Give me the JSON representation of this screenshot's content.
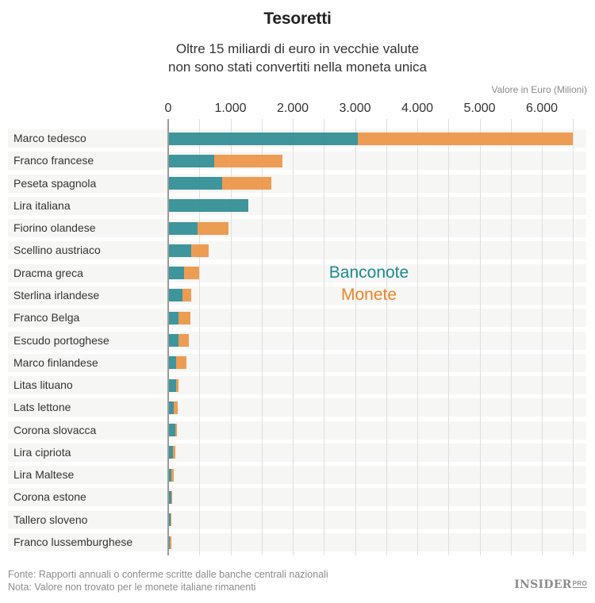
{
  "header": {
    "title": "Tesoretti",
    "subtitle_line1": "Oltre 15 miliardi di euro in vecchie valute",
    "subtitle_line2": "non sono stati convertiti nella moneta unica"
  },
  "axis": {
    "title": "Valore in Euro (Milioni)",
    "ticks": [
      "0",
      "1.000",
      "2.000",
      "3.000",
      "4.000",
      "5.000",
      "6.000"
    ]
  },
  "legend": {
    "banconote": "Banconote",
    "monete": "Monete"
  },
  "colors": {
    "banconote": "#2e8c92",
    "monete": "#ec9444",
    "legend_banconote_text": "#1f8a8f",
    "legend_monete_text": "#e8852a"
  },
  "footer": {
    "source": "Fonte: Rapporti annuali o conferme scritte dalle banche centrali nazionali",
    "note": "Nota: Valore non trovato per le monete italiane rimanenti"
  },
  "logo": {
    "name": "INSIDER",
    "suffix": "PRO"
  },
  "chart_data": {
    "type": "bar",
    "orientation": "horizontal",
    "stacked": true,
    "title": "Tesoretti",
    "subtitle": "Oltre 15 miliardi di euro in vecchie valute non sono stati convertiti nella moneta unica",
    "xlabel": "Valore in Euro (Milioni)",
    "ylabel": "",
    "xlim": [
      0,
      6500
    ],
    "x_ticks": [
      0,
      1000,
      2000,
      3000,
      4000,
      5000,
      6000
    ],
    "grid": true,
    "legend_position": "inside-center",
    "categories": [
      "Marco tedesco",
      "Franco francese",
      "Peseta spagnola",
      "Lira italiana",
      "Fiorino olandese",
      "Scellino austriaco",
      "Dracma greca",
      "Sterlina irlandese",
      "Franco Belga",
      "Escudo portoghese",
      "Marco finlandese",
      "Litas lituano",
      "Lats lettone",
      "Corona slovacca",
      "Lira cipriota",
      "Lira Maltese",
      "Corona estone",
      "Tallero sloveno",
      "Franco lussemburghese"
    ],
    "series": [
      {
        "name": "Banconote",
        "color": "#2e8c92",
        "values": [
          3050,
          740,
          860,
          1290,
          470,
          370,
          255,
          235,
          160,
          160,
          130,
          130,
          95,
          115,
          75,
          45,
          50,
          40,
          20
        ]
      },
      {
        "name": "Monete",
        "color": "#ec9444",
        "values": [
          3450,
          1100,
          790,
          0,
          500,
          275,
          240,
          130,
          195,
          175,
          160,
          40,
          60,
          25,
          40,
          40,
          20,
          15,
          25
        ]
      }
    ]
  }
}
